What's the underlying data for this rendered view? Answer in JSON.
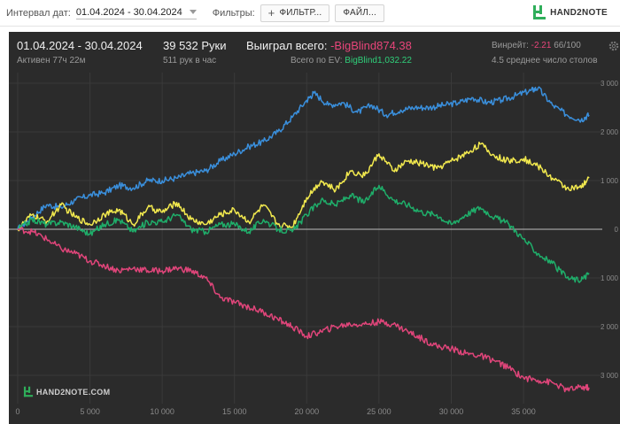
{
  "toolbar": {
    "date_label": "Интервал дат:",
    "date_range": "01.04.2024 - 30.04.2024",
    "filters_label": "Фильтры:",
    "filter_button": "ФИЛЬТР...",
    "file_button": "ФАЙЛ...",
    "brand": "HAND2NOTE"
  },
  "header": {
    "period": "01.04.2024 - 30.04.2024",
    "active": "Активен 77ч 22м",
    "hands": "39 532 Руки",
    "hands_per_hour": "511 рук в час",
    "won_label": "Выиграл всего:",
    "won_value": "-BigBlind874.38",
    "ev_label": "Всего по EV:",
    "ev_value": "BigBlind1,032.22",
    "winrate_label": "Винрейт:",
    "winrate_value": "-2.21",
    "winrate_rest": "66/100",
    "tables": "4.5 среднее число столов"
  },
  "watermark": "HAND2NOTE.COM",
  "colors": {
    "blue": "#3a8fdc",
    "yellow": "#f2e94e",
    "green": "#1fae6a",
    "red": "#e0457a"
  },
  "chart_data": {
    "type": "line",
    "xlim": [
      0,
      39532
    ],
    "ylim": [
      -3400,
      3000
    ],
    "x_ticks": [
      0,
      5000,
      10000,
      15000,
      20000,
      25000,
      30000,
      35000
    ],
    "x_tick_labels": [
      "0",
      "5 000",
      "10 000",
      "15 000",
      "20 000",
      "25 000",
      "30 000",
      "35 000"
    ],
    "y_ticks": [
      3000,
      2000,
      1000,
      0,
      -1000,
      -2000,
      -3000
    ],
    "y_tick_labels": [
      "3 000",
      "2 000",
      "1 000",
      "0",
      "1 000",
      "2 000",
      "3 000"
    ],
    "grid": true,
    "series": [
      {
        "color": "blue",
        "x": [
          0,
          1000,
          2000,
          3000,
          4000,
          5000,
          6000,
          7000,
          8000,
          9000,
          10000,
          11000,
          12000,
          13000,
          14000,
          15000,
          16000,
          17000,
          18000,
          19000,
          20000,
          20500,
          21500,
          22500,
          23500,
          24500,
          25500,
          26500,
          27500,
          28500,
          29500,
          30500,
          31500,
          32500,
          33500,
          34500,
          35500,
          36000,
          37000,
          38000,
          39000,
          39532
        ],
        "y": [
          0,
          250,
          500,
          450,
          600,
          700,
          750,
          900,
          850,
          1000,
          1000,
          1050,
          1150,
          1200,
          1400,
          1550,
          1700,
          1800,
          2000,
          2300,
          2650,
          2800,
          2550,
          2600,
          2400,
          2550,
          2350,
          2450,
          2500,
          2500,
          2550,
          2600,
          2700,
          2600,
          2650,
          2750,
          2850,
          2900,
          2550,
          2350,
          2250,
          2350
        ]
      },
      {
        "color": "yellow",
        "x": [
          0,
          1000,
          2000,
          3000,
          4000,
          5000,
          6000,
          7000,
          8000,
          9000,
          10000,
          11000,
          12000,
          13000,
          14000,
          15000,
          16000,
          17000,
          18000,
          19000,
          20000,
          21000,
          22000,
          23000,
          24000,
          25000,
          26000,
          27000,
          28000,
          29000,
          30000,
          31000,
          32000,
          33000,
          34000,
          35000,
          36000,
          37000,
          38000,
          39000,
          39532
        ],
        "y": [
          0,
          300,
          150,
          500,
          250,
          100,
          300,
          400,
          100,
          450,
          350,
          550,
          200,
          100,
          300,
          400,
          150,
          500,
          100,
          50,
          650,
          1000,
          800,
          1200,
          1100,
          1550,
          1200,
          1400,
          1350,
          1250,
          1400,
          1550,
          1750,
          1500,
          1400,
          1450,
          1300,
          1050,
          850,
          850,
          1050
        ]
      },
      {
        "color": "green",
        "x": [
          0,
          1000,
          2000,
          3000,
          4000,
          5000,
          6000,
          7000,
          8000,
          9000,
          10000,
          11000,
          12000,
          13000,
          14000,
          15000,
          16000,
          17000,
          18000,
          19000,
          20000,
          21000,
          22000,
          23000,
          24000,
          25000,
          26000,
          27000,
          28000,
          29000,
          30000,
          31000,
          32000,
          33000,
          34000,
          35000,
          36000,
          37000,
          38000,
          39000,
          39532
        ],
        "y": [
          0,
          200,
          100,
          150,
          50,
          -100,
          100,
          200,
          -50,
          150,
          150,
          300,
          0,
          -50,
          100,
          100,
          -50,
          200,
          0,
          -50,
          300,
          600,
          500,
          700,
          550,
          900,
          600,
          500,
          350,
          300,
          100,
          300,
          450,
          250,
          100,
          -200,
          -500,
          -700,
          -1000,
          -1050,
          -900
        ]
      },
      {
        "color": "red",
        "x": [
          0,
          1000,
          2000,
          3000,
          4000,
          5000,
          6000,
          7000,
          8000,
          9000,
          10000,
          11000,
          12000,
          13000,
          14000,
          15000,
          16000,
          17000,
          18000,
          19000,
          20000,
          21000,
          22000,
          23000,
          24000,
          25000,
          26000,
          27000,
          28000,
          29000,
          30000,
          31000,
          32000,
          33000,
          34000,
          35000,
          36000,
          37000,
          38000,
          39000,
          39532
        ],
        "y": [
          0,
          -50,
          -200,
          -400,
          -500,
          -650,
          -750,
          -850,
          -800,
          -850,
          -850,
          -800,
          -850,
          -1000,
          -1400,
          -1500,
          -1600,
          -1700,
          -1850,
          -2000,
          -2200,
          -2100,
          -2000,
          -1950,
          -1950,
          -1900,
          -1950,
          -2100,
          -2250,
          -2400,
          -2450,
          -2550,
          -2600,
          -2700,
          -2850,
          -3050,
          -3100,
          -3150,
          -3300,
          -3250,
          -3250
        ]
      }
    ]
  }
}
